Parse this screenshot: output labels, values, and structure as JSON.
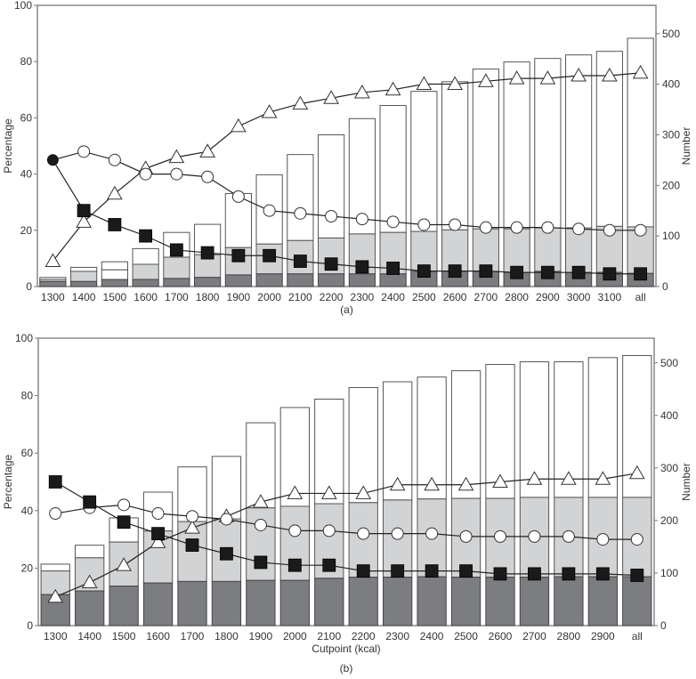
{
  "colors": {
    "dark": "#7c7d80",
    "grey": "#d2d3d5",
    "white": "#ffffff",
    "outline": "#555555",
    "line": "#222222",
    "marker_fill": "#1a1a1a"
  },
  "chart_data": [
    {
      "type": "bar",
      "panel_label": "(a)",
      "xlabel": "",
      "ylabel": "Percentage",
      "y2label": "Number",
      "ylim": [
        0,
        100
      ],
      "y2lim": [
        0,
        556
      ],
      "yticks": [
        "0",
        "20",
        "40",
        "60",
        "80",
        "100"
      ],
      "y2ticks": [
        "0",
        "100",
        "200",
        "300",
        "400",
        "500"
      ],
      "categories": [
        "1300",
        "1400",
        "1500",
        "1600",
        "1700",
        "1800",
        "1900",
        "2000",
        "2100",
        "2200",
        "2300",
        "2400",
        "2500",
        "2600",
        "2700",
        "2800",
        "2900",
        "3000",
        "3100",
        "all"
      ],
      "bars": {
        "axis": "Number",
        "total": [
          18,
          38,
          49,
          75,
          107,
          123,
          184,
          221,
          261,
          300,
          332,
          358,
          386,
          405,
          430,
          444,
          451,
          458,
          465,
          491
        ],
        "middle": [
          14,
          30,
          33,
          44,
          58,
          63,
          77,
          84,
          91,
          96,
          104,
          107,
          109,
          112,
          114,
          114,
          116,
          116,
          119,
          118
        ],
        "bottom": [
          10,
          10,
          14,
          14,
          16,
          18,
          23,
          25,
          25,
          25,
          25,
          25,
          30,
          30,
          30,
          28,
          30,
          28,
          28,
          26
        ],
        "middle_white_at": [
          "1500"
        ]
      },
      "series": [
        {
          "name": "triangle",
          "marker": "open-triangle",
          "axis": "Percentage",
          "values": [
            9,
            23,
            33,
            42,
            46,
            48,
            57,
            62,
            65,
            67,
            69,
            70,
            72,
            72,
            73,
            74,
            74,
            75,
            75,
            76
          ]
        },
        {
          "name": "circle",
          "marker": "open-circle",
          "axis": "Percentage",
          "values": [
            45,
            48,
            45,
            40,
            40,
            39,
            32,
            27,
            26,
            25,
            24,
            23,
            22,
            22,
            21,
            21,
            21,
            20.5,
            20,
            20
          ]
        },
        {
          "name": "square",
          "marker": "filled-square",
          "axis": "Percentage",
          "values": [
            45,
            27,
            22,
            18,
            13,
            12,
            11,
            11,
            9,
            8,
            7,
            6.5,
            5.5,
            5.5,
            5.5,
            5,
            5,
            5,
            4.5,
            4.5
          ]
        }
      ],
      "shared_start_marker": "filled-circle"
    },
    {
      "type": "bar",
      "panel_label": "(b)",
      "xlabel": "Cutpoint (kcal)",
      "ylabel": "Percentage",
      "y2label": "Number",
      "ylim": [
        0,
        100
      ],
      "y2lim": [
        0,
        547
      ],
      "yticks": [
        "0",
        "20",
        "40",
        "60",
        "80",
        "100"
      ],
      "y2ticks": [
        "0",
        "100",
        "200",
        "300",
        "400",
        "500"
      ],
      "categories": [
        "1300",
        "1400",
        "1500",
        "1600",
        "1700",
        "1800",
        "1900",
        "2000",
        "2100",
        "2200",
        "2300",
        "2400",
        "2500",
        "2600",
        "2700",
        "2800",
        "2900",
        "all"
      ],
      "bars": {
        "axis": "Number",
        "total": [
          117,
          153,
          205,
          254,
          302,
          322,
          386,
          415,
          431,
          453,
          464,
          473,
          485,
          497,
          502,
          502,
          510,
          514
        ],
        "middle": [
          104,
          129,
          159,
          180,
          198,
          203,
          224,
          227,
          232,
          234,
          239,
          241,
          242,
          242,
          244,
          244,
          244,
          244
        ],
        "bottom": [
          59,
          66,
          75,
          81,
          84,
          84,
          86,
          86,
          90,
          92,
          92,
          93,
          92,
          92,
          92,
          93,
          93,
          93
        ],
        "middle_white_at": []
      },
      "series": [
        {
          "name": "triangle",
          "marker": "open-triangle",
          "axis": "Percentage",
          "values": [
            10,
            15,
            21,
            29,
            34,
            38,
            43,
            46,
            46,
            46,
            49,
            49,
            49,
            50,
            51,
            51,
            51,
            53
          ]
        },
        {
          "name": "circle",
          "marker": "open-circle",
          "axis": "Percentage",
          "values": [
            39,
            41,
            42,
            39,
            38,
            37,
            35,
            33,
            33,
            32,
            32,
            32,
            31,
            31,
            31,
            31,
            30,
            30
          ]
        },
        {
          "name": "square",
          "marker": "filled-square",
          "axis": "Percentage",
          "values": [
            50,
            43,
            36,
            32,
            28,
            25,
            22,
            21,
            21,
            19,
            19,
            19,
            19,
            18,
            18,
            18,
            18,
            17.5
          ]
        }
      ],
      "shared_start_marker": ""
    }
  ]
}
